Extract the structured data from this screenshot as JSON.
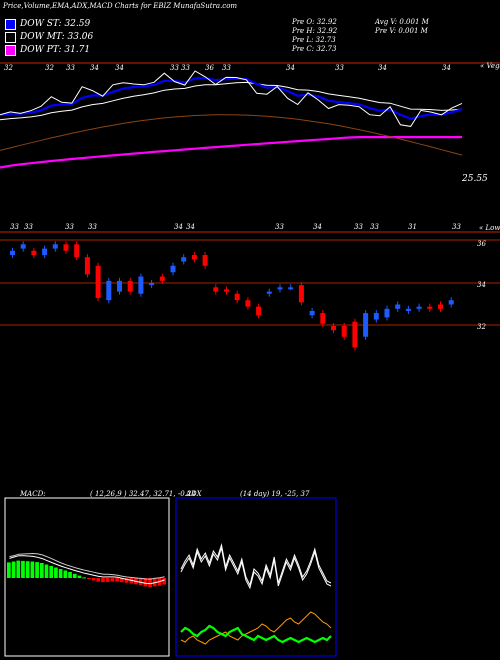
{
  "header": {
    "title": "Price,Volume,EMA,ADX,MACD Charts for EBIZ MunafaSutra.com",
    "legend": [
      {
        "label": "DOW ST: 32.59",
        "color": "#0000ff"
      },
      {
        "label": "DOW MT: 33.06",
        "color": "#000000"
      },
      {
        "label": "DOW PT: 31.71",
        "color": "#ff00ff"
      }
    ],
    "stats_left": [
      "Pre   O: 32.92",
      "Pre   H: 32.92",
      "Pre   L: 32.73",
      "Pre   C: 32.73"
    ],
    "stats_right": [
      "Avg V: 0.001 M",
      "Pre   V: 0.001 M"
    ]
  },
  "ema_panel": {
    "right_label_top": "« Vega",
    "right_label_bottom": "« Lower",
    "last_value": "25.55",
    "top_volume_labels": [
      "32",
      "32",
      "33",
      "34",
      "34",
      "33",
      "33",
      "36",
      "33",
      "34",
      "33",
      "34",
      "34"
    ],
    "bottom_volume_labels": [
      "33",
      "33",
      "33",
      "33",
      "34",
      "34",
      "33",
      "34",
      "33",
      "33",
      "31",
      "33"
    ],
    "colors": {
      "price": "#ffffff",
      "short": "#0000ff",
      "mid": "#ffffff",
      "long": "#8b4513",
      "pt": "#ff00ff"
    }
  },
  "candle_panel": {
    "price_labels": [
      "36",
      "34",
      "32"
    ],
    "colors": {
      "up": "#1e5bff",
      "down": "#ff0000",
      "level": "#aa2200"
    }
  },
  "macd": {
    "label": "MACD:",
    "params": "( 12,26,9 ) 32.47,  32.71,  -0.24",
    "colors": {
      "positive": "#00ff00",
      "negative": "#ff0000",
      "line": "#ffffff",
      "panel_border": "#ffffff"
    }
  },
  "adx": {
    "label": "ADX",
    "params": "(14  day) 19,  -25,  37",
    "colors": {
      "adx": "#ffffff",
      "plus": "#00ff00",
      "minus": "#ff9900",
      "panel_border": "#0000ff"
    }
  },
  "chart_data": {
    "type": "line",
    "title": "Price,Volume,EMA,ADX,MACD Charts for EBIZ MunafaSutra.com",
    "candles": [
      {
        "o": 35.3,
        "c": 35.5
      },
      {
        "o": 35.6,
        "c": 35.8
      },
      {
        "o": 35.5,
        "c": 35.3
      },
      {
        "o": 35.3,
        "c": 35.6
      },
      {
        "o": 35.6,
        "c": 35.8
      },
      {
        "o": 35.8,
        "c": 35.5
      },
      {
        "o": 35.8,
        "c": 35.2
      },
      {
        "o": 35.2,
        "c": 34.4
      },
      {
        "o": 34.8,
        "c": 33.3
      },
      {
        "o": 33.2,
        "c": 34.1
      },
      {
        "o": 33.6,
        "c": 34.1
      },
      {
        "o": 34.1,
        "c": 33.6
      },
      {
        "o": 33.5,
        "c": 34.3
      },
      {
        "o": 33.9,
        "c": 34.0
      },
      {
        "o": 34.3,
        "c": 34.1
      },
      {
        "o": 34.5,
        "c": 34.8
      },
      {
        "o": 35.0,
        "c": 35.2
      },
      {
        "o": 35.3,
        "c": 35.1
      },
      {
        "o": 35.3,
        "c": 34.8
      },
      {
        "o": 33.8,
        "c": 33.6
      },
      {
        "o": 33.7,
        "c": 33.6
      },
      {
        "o": 33.5,
        "c": 33.2
      },
      {
        "o": 33.2,
        "c": 32.9
      },
      {
        "o": 32.9,
        "c": 32.5
      },
      {
        "o": 33.5,
        "c": 33.6
      },
      {
        "o": 33.7,
        "c": 33.8
      },
      {
        "o": 33.8,
        "c": 33.8
      },
      {
        "o": 33.9,
        "c": 33.1
      },
      {
        "o": 32.5,
        "c": 32.7
      },
      {
        "o": 32.6,
        "c": 32.1
      },
      {
        "o": 32.0,
        "c": 31.8
      },
      {
        "o": 32.0,
        "c": 31.5
      },
      {
        "o": 32.2,
        "c": 31.0
      },
      {
        "o": 31.5,
        "c": 32.6
      },
      {
        "o": 32.3,
        "c": 32.6
      },
      {
        "o": 32.4,
        "c": 32.8
      },
      {
        "o": 32.8,
        "c": 33.0
      },
      {
        "o": 32.7,
        "c": 32.8
      },
      {
        "o": 32.8,
        "c": 32.9
      },
      {
        "o": 32.9,
        "c": 32.8
      },
      {
        "o": 33.0,
        "c": 32.8
      },
      {
        "o": 33.0,
        "c": 33.2
      }
    ],
    "macd_values": [
      0.52,
      0.55,
      0.58,
      0.57,
      0.56,
      0.55,
      0.53,
      0.5,
      0.45,
      0.4,
      0.35,
      0.3,
      0.25,
      0.2,
      0.14,
      0.08,
      0.02,
      -0.03,
      -0.08,
      -0.12,
      -0.14,
      -0.13,
      -0.12,
      -0.12,
      -0.14,
      -0.16,
      -0.18,
      -0.21,
      -0.24,
      -0.28,
      -0.3,
      -0.28,
      -0.26,
      -0.22
    ],
    "adx_values": [
      28,
      32,
      35,
      30,
      38,
      33,
      36,
      31,
      37,
      34,
      40,
      29,
      35,
      31,
      27,
      33,
      24,
      20,
      28,
      26,
      22,
      30,
      25,
      34,
      21,
      27,
      33,
      29,
      35,
      30,
      24,
      27,
      32,
      38,
      30,
      26,
      22,
      21
    ],
    "plus_di_values": [
      20,
      22,
      21,
      19,
      18,
      20,
      21,
      23,
      22,
      20,
      19,
      18,
      20,
      21,
      22,
      19,
      18,
      17,
      16,
      18,
      17,
      16,
      17,
      18,
      16,
      15,
      16,
      17,
      16,
      15,
      16,
      17,
      16,
      15,
      16,
      17,
      16,
      18
    ],
    "minus_di_values": [
      14,
      13,
      15,
      16,
      14,
      13,
      12,
      14,
      15,
      16,
      17,
      18,
      16,
      15,
      14,
      16,
      17,
      18,
      19,
      20,
      22,
      21,
      19,
      18,
      20,
      22,
      24,
      25,
      23,
      22,
      24,
      26,
      28,
      27,
      25,
      23,
      22,
      20
    ]
  }
}
